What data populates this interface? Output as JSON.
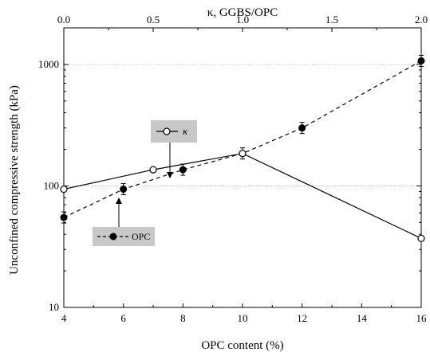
{
  "chart_data": {
    "type": "line",
    "xlabel": "OPC content (%)",
    "x2label": "κ, GGBS/OPC",
    "ylabel": "Unconfined compressive strength (kPa)",
    "yscale": "log",
    "xlim": [
      4,
      16
    ],
    "x2lim": [
      0.0,
      2.0
    ],
    "ylim": [
      10,
      2000
    ],
    "xticks": [
      4,
      6,
      8,
      10,
      12,
      14,
      16
    ],
    "x2ticks": [
      "0.0",
      "0.5",
      "1.0",
      "1.5",
      "2.0"
    ],
    "yticks": [
      10,
      100,
      1000
    ],
    "grid": "dotted horizontal at 100 and 1000",
    "series": [
      {
        "name": "κ",
        "axis": "top",
        "marker": "open-circle",
        "line": "solid",
        "x": [
          0.0,
          0.5,
          1.0,
          2.0
        ],
        "y": [
          94,
          136,
          185,
          37
        ]
      },
      {
        "name": "OPC",
        "axis": "bottom",
        "marker": "filled-circle",
        "line": "dashed",
        "x": [
          4,
          6,
          8,
          10,
          12,
          16
        ],
        "y": [
          55,
          94,
          136,
          185,
          300,
          1070
        ]
      }
    ],
    "legend": [
      {
        "label": "κ",
        "symbol": "open-circle-solid"
      },
      {
        "label": "OPC",
        "symbol": "filled-circle-dashed"
      }
    ]
  }
}
